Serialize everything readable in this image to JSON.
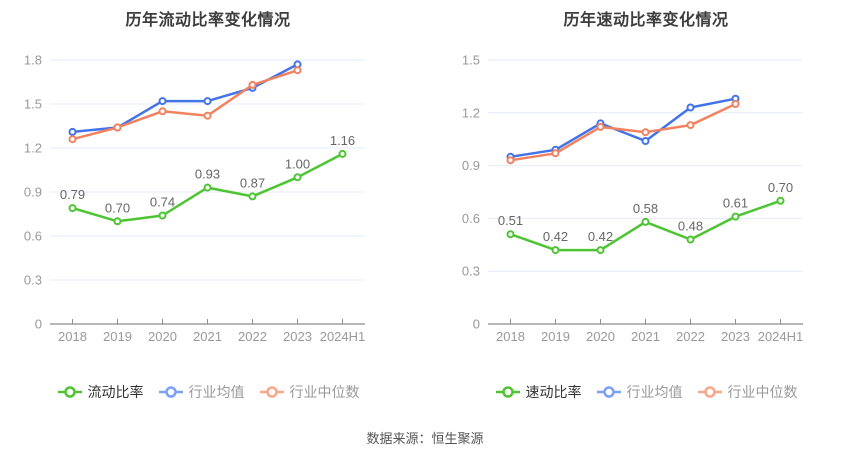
{
  "page": {
    "background": "#ffffff",
    "source_note": "数据来源：恒生聚源"
  },
  "colors": {
    "grid": "#e4ebf7",
    "axis_line": "#8c8c8c",
    "axis_label": "#999999",
    "data_label": "#666666",
    "title": "#3d3d3d",
    "source": "#555555"
  },
  "chart_data": [
    {
      "type": "line",
      "title": "历年流动比率变化情况",
      "categories": [
        "2018",
        "2019",
        "2020",
        "2021",
        "2022",
        "2023",
        "2024H1"
      ],
      "ylim": [
        0,
        1.8
      ],
      "yticks": [
        0,
        0.3,
        0.6,
        0.9,
        1.2,
        1.5,
        1.8
      ],
      "grid": true,
      "legend_position": "bottom",
      "series": [
        {
          "name": "流动比率",
          "color": "#4dc432",
          "legend_color": "#4dc432",
          "label_color": "#333333",
          "values": [
            0.79,
            0.7,
            0.74,
            0.93,
            0.87,
            1.0,
            1.16
          ],
          "labels": [
            "0.79",
            "0.70",
            "0.74",
            "0.93",
            "0.87",
            "1.00",
            "1.16"
          ]
        },
        {
          "name": "行业均值",
          "color": "#4273e8",
          "legend_color": "#7ba2f2",
          "label_color": "#999999",
          "values": [
            1.31,
            1.34,
            1.52,
            1.52,
            1.61,
            1.77
          ]
        },
        {
          "name": "行业中位数",
          "color": "#f2825f",
          "legend_color": "#f7a789",
          "label_color": "#999999",
          "values": [
            1.26,
            1.34,
            1.45,
            1.42,
            1.63,
            1.73
          ]
        }
      ]
    },
    {
      "type": "line",
      "title": "历年速动比率变化情况",
      "categories": [
        "2018",
        "2019",
        "2020",
        "2021",
        "2022",
        "2023",
        "2024H1"
      ],
      "ylim": [
        0,
        1.5
      ],
      "yticks": [
        0,
        0.3,
        0.6,
        0.9,
        1.2,
        1.5
      ],
      "grid": true,
      "legend_position": "bottom",
      "series": [
        {
          "name": "速动比率",
          "color": "#4dc432",
          "legend_color": "#4dc432",
          "label_color": "#333333",
          "values": [
            0.51,
            0.42,
            0.42,
            0.58,
            0.48,
            0.61,
            0.7
          ],
          "labels": [
            "0.51",
            "0.42",
            "0.42",
            "0.58",
            "0.48",
            "0.61",
            "0.70"
          ]
        },
        {
          "name": "行业均值",
          "color": "#4273e8",
          "legend_color": "#7ba2f2",
          "label_color": "#999999",
          "values": [
            0.95,
            0.99,
            1.14,
            1.04,
            1.23,
            1.28
          ]
        },
        {
          "name": "行业中位数",
          "color": "#f2825f",
          "legend_color": "#f7a789",
          "label_color": "#999999",
          "values": [
            0.93,
            0.97,
            1.12,
            1.09,
            1.13,
            1.25
          ]
        }
      ]
    }
  ]
}
